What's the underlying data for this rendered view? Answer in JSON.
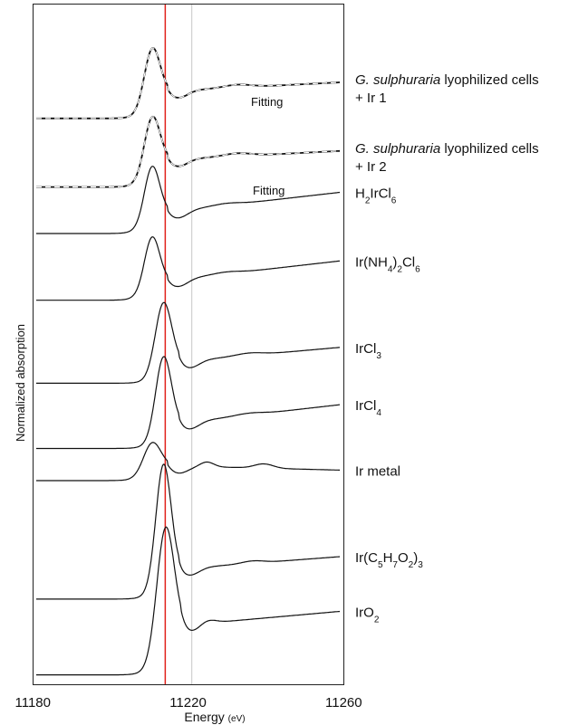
{
  "chart_data": {
    "type": "line",
    "xlabel": "Energy",
    "xlabel_unit": "(eV)",
    "ylabel": "Normalized absorption",
    "xlim": [
      11180,
      11260
    ],
    "xticks": [
      "11180",
      "11220",
      "11260"
    ],
    "reference_lines": [
      {
        "x": 11214,
        "color": "#e0201a"
      },
      {
        "x": 11221,
        "color": "#c8c8c8"
      }
    ],
    "fit_label": "Fitting",
    "series": [
      {
        "name": "G. sulphuraria lyophilized cells + Ir 1",
        "name_italic": "G. sulphuraria",
        "name_rest": " lyophilized cells",
        "name_line2": "+ Ir 1",
        "offset": 11.7,
        "peak_x": 11210.5,
        "peak_h": 1.05,
        "width": 2.9,
        "edge_x": 11209,
        "pre": -0.15,
        "post": 0.42,
        "slope": 0.004,
        "bumps": [
          [
            11233,
            0.06,
            5
          ]
        ],
        "fit": true
      },
      {
        "name": "G. sulphuraria lyophilized cells + Ir 2",
        "name_italic": "G. sulphuraria",
        "name_rest": " lyophilized cells",
        "name_line2": "+ Ir 2",
        "offset": 10.27,
        "peak_x": 11210.5,
        "peak_h": 1.05,
        "width": 2.9,
        "edge_x": 11209,
        "pre": -0.15,
        "post": 0.42,
        "slope": 0.004,
        "bumps": [
          [
            11233,
            0.06,
            5
          ]
        ],
        "fit": true
      },
      {
        "name": "H2IrCl6",
        "parts": [
          [
            "H",
            ""
          ],
          [
            "2",
            "sub"
          ],
          [
            "IrCl",
            ""
          ],
          [
            "6",
            "sub"
          ]
        ],
        "offset": 9.2,
        "peak_x": 11210.5,
        "peak_h": 1.05,
        "width": 2.8,
        "edge_x": 11208.5,
        "pre": -0.05,
        "post": 0.4,
        "slope": 0.009,
        "bumps": [
          [
            11230,
            0.04,
            5
          ]
        ]
      },
      {
        "name": "Ir(NH4)2Cl6",
        "parts": [
          [
            "Ir(NH",
            ""
          ],
          [
            "4",
            "sub"
          ],
          [
            ")",
            ""
          ],
          [
            "2",
            "sub"
          ],
          [
            "Cl",
            ""
          ],
          [
            "6",
            "sub"
          ]
        ],
        "offset": 7.78,
        "peak_x": 11210.5,
        "peak_h": 1.0,
        "width": 2.8,
        "edge_x": 11208.5,
        "pre": -0.02,
        "post": 0.39,
        "slope": 0.009,
        "bumps": [
          [
            11230,
            0.04,
            5
          ]
        ]
      },
      {
        "name": "IrCl3",
        "parts": [
          [
            "IrCl",
            ""
          ],
          [
            "3",
            "sub"
          ]
        ],
        "offset": 6.05,
        "peak_x": 11213.5,
        "peak_h": 1.33,
        "width": 3.0,
        "edge_x": 11211.5,
        "pre": -0.02,
        "post": 0.43,
        "slope": 0.007,
        "bumps": [
          [
            11236,
            0.05,
            5
          ]
        ]
      },
      {
        "name": "IrCl4",
        "parts": [
          [
            "IrCl",
            ""
          ],
          [
            "4",
            "sub"
          ]
        ],
        "offset": 4.72,
        "peak_x": 11213.5,
        "peak_h": 1.5,
        "width": 2.9,
        "edge_x": 11211.5,
        "pre": -0.05,
        "post": 0.48,
        "slope": 0.009,
        "bumps": [
          [
            11236,
            0.04,
            5
          ]
        ]
      },
      {
        "name": "Ir metal",
        "offset": 4.05,
        "peak_x": 11210.5,
        "peak_h": 0.55,
        "width": 3.2,
        "edge_x": 11208.5,
        "pre": -0.05,
        "post": 0.26,
        "slope": -0.002,
        "bumps": [
          [
            11225,
            0.1,
            2.5
          ],
          [
            11240,
            0.09,
            3.5
          ]
        ]
      },
      {
        "name": "Ir(C5H7O2)3",
        "parts": [
          [
            "Ir(C",
            ""
          ],
          [
            "5",
            "sub"
          ],
          [
            "H",
            ""
          ],
          [
            "7",
            "sub"
          ],
          [
            "O",
            ""
          ],
          [
            "2",
            "sub"
          ],
          [
            ")",
            ""
          ],
          [
            "3",
            "sub"
          ]
        ],
        "offset": 1.58,
        "peak_x": 11213.5,
        "peak_h": 2.32,
        "width": 2.8,
        "edge_x": 11211.5,
        "pre": -0.05,
        "post": 0.58,
        "slope": 0.006,
        "bumps": [
          [
            11237,
            0.05,
            4
          ]
        ]
      },
      {
        "name": "IrO2",
        "parts": [
          [
            "IrO",
            ""
          ],
          [
            "2",
            "sub"
          ]
        ],
        "offset": 0.0,
        "peak_x": 11214,
        "peak_h": 2.27,
        "width": 3.2,
        "edge_x": 11212,
        "pre": -0.05,
        "post": 0.98,
        "slope": 0.007,
        "bumps": [
          [
            11225,
            0.08,
            3
          ]
        ]
      }
    ]
  }
}
